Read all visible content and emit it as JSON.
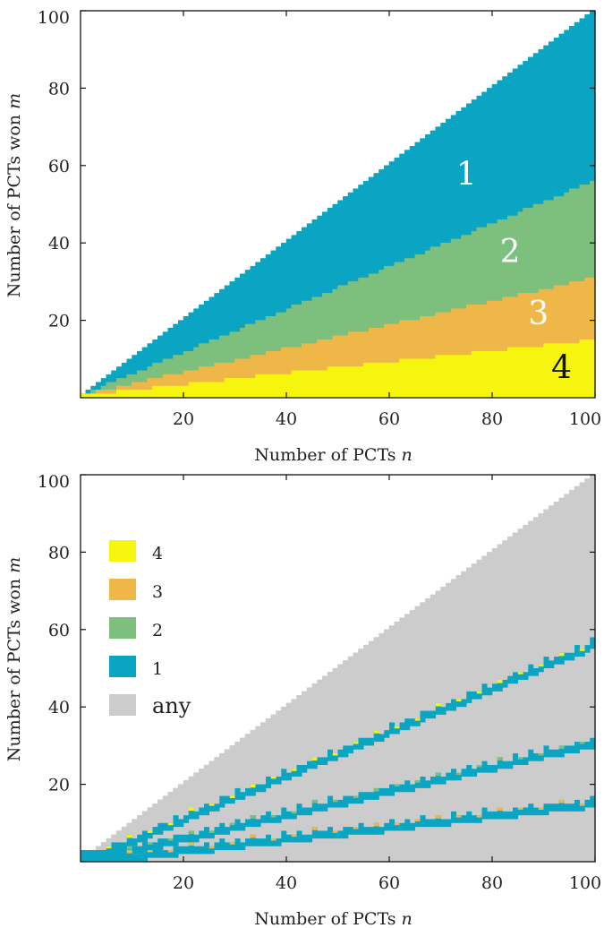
{
  "chart_data": [
    {
      "type": "heatmap",
      "xlabel": "Number of PCTs",
      "xlabel_var": "n",
      "ylabel": "Number of PCTs won",
      "ylabel_var": "m",
      "xlim": [
        0,
        100
      ],
      "ylim": [
        0,
        100
      ],
      "x_ticks": [
        "20",
        "40",
        "60",
        "80",
        "100"
      ],
      "y_ticks": [
        "20",
        "40",
        "60",
        "80",
        "100"
      ],
      "domain": "0 <= m <= n",
      "colors": {
        "1": "#0aa5c2",
        "2": "#7dbf7d",
        "3": "#efb748",
        "4": "#f5f50e"
      },
      "boundaries": {
        "4_to_3": {
          "n": [
            0,
            100
          ],
          "m": [
            0,
            14.5
          ]
        },
        "3_to_2": {
          "n": [
            0,
            100
          ],
          "m": [
            0,
            30.5
          ]
        },
        "2_to_1": {
          "n": [
            0,
            100
          ],
          "m": [
            0,
            55.5
          ]
        }
      },
      "region_labels": [
        {
          "text": "1",
          "n": 75,
          "m": 55,
          "color": "#ffffff"
        },
        {
          "text": "2",
          "n": 83.5,
          "m": 35,
          "color": "#ffffff"
        },
        {
          "text": "3",
          "n": 89,
          "m": 19,
          "color": "#ffffff"
        },
        {
          "text": "4",
          "n": 93.5,
          "m": 5,
          "color": "#111111"
        }
      ]
    },
    {
      "type": "heatmap",
      "xlabel": "Number of PCTs",
      "xlabel_var": "n",
      "ylabel": "Number of PCTs won",
      "ylabel_var": "m",
      "xlim": [
        0,
        100
      ],
      "ylim": [
        0,
        100
      ],
      "x_ticks": [
        "20",
        "40",
        "60",
        "80",
        "100"
      ],
      "y_ticks": [
        "20",
        "40",
        "60",
        "80",
        "100"
      ],
      "background_category": "any",
      "legend": {
        "position": "upper-left",
        "entries": [
          {
            "label": "4",
            "color": "#f5f50e"
          },
          {
            "label": "3",
            "color": "#efb748"
          },
          {
            "label": "2",
            "color": "#7dbf7d"
          },
          {
            "label": "1",
            "color": "#0aa5c2"
          },
          {
            "label": "any",
            "color": "#cccccc"
          }
        ]
      },
      "bands": [
        {
          "name": "upper",
          "m_start": 0,
          "m_end": 56.5,
          "width": 2.2,
          "accent": "#f5f50e"
        },
        {
          "name": "middle",
          "m_start": 0,
          "m_end": 31,
          "width": 2.0,
          "accent": "#7dbf7d"
        },
        {
          "name": "lower",
          "m_start": 0,
          "m_end": 15.2,
          "width": 1.8,
          "accent": "#efb748"
        }
      ],
      "origin_patch": {
        "n": [
          0,
          8
        ],
        "m": [
          0,
          3
        ]
      }
    }
  ]
}
